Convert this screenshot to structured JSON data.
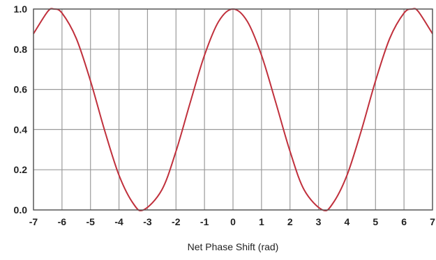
{
  "chart_data": {
    "type": "line",
    "title": "",
    "xlabel": "Net Phase Shift (rad)",
    "ylabel": "",
    "xlim": [
      -7,
      7
    ],
    "ylim": [
      0,
      1
    ],
    "grid": true,
    "legend": "none",
    "x_ticks": [
      -7,
      -6,
      -5,
      -4,
      -3,
      -2,
      -1,
      0,
      1,
      2,
      3,
      4,
      5,
      6,
      7
    ],
    "y_ticks": [
      0.0,
      0.2,
      0.4,
      0.6,
      0.8,
      1.0
    ],
    "series": [
      {
        "color": "#c0303c",
        "x": [
          -7.0,
          -6.5,
          -6.283,
          -6.0,
          -5.5,
          -5.0,
          -4.5,
          -4.0,
          -3.5,
          -3.142,
          -2.5,
          -2.0,
          -1.5,
          -1.0,
          -0.5,
          0.0,
          0.5,
          1.0,
          1.5,
          2.0,
          2.5,
          3.142,
          3.5,
          4.0,
          4.5,
          5.0,
          5.5,
          6.0,
          6.283,
          6.5,
          7.0
        ],
        "y": [
          0.877,
          0.988,
          1.0,
          0.98,
          0.854,
          0.642,
          0.394,
          0.173,
          0.032,
          0.0,
          0.099,
          0.292,
          0.535,
          0.77,
          0.939,
          1.0,
          0.939,
          0.77,
          0.535,
          0.292,
          0.099,
          0.0,
          0.032,
          0.173,
          0.394,
          0.642,
          0.854,
          0.98,
          1.0,
          0.988,
          0.877
        ]
      }
    ]
  }
}
